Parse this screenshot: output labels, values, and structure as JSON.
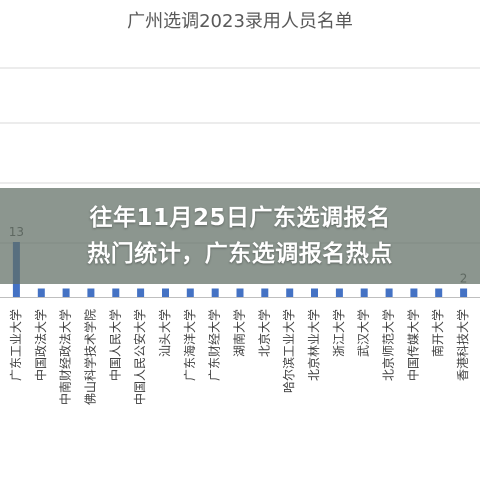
{
  "chart_data": {
    "type": "bar",
    "title": "广州选调2023录用人员名单",
    "categories": [
      "广东工业大学",
      "中国政法大学",
      "中南财经政法大学",
      "佛山科学技术学院",
      "中国人民大学",
      "中国人民公安大学",
      "汕头大学",
      "广东海洋大学",
      "广东财经大学",
      "湖南大学",
      "北京大学",
      "哈尔滨工业大学",
      "北京林业大学",
      "浙江大学",
      "武汉大学",
      "北京师范大学",
      "中国传媒大学",
      "南开大学",
      "香港科技大学"
    ],
    "values": [
      13,
      2,
      2,
      2,
      2,
      2,
      2,
      2,
      2,
      2,
      2,
      2,
      2,
      2,
      2,
      2,
      2,
      2,
      2
    ],
    "data_labels": [
      "13",
      "",
      "",
      "",
      "",
      "",
      "",
      "",
      "",
      "",
      "",
      "",
      "",
      "",
      "",
      "",
      "",
      "",
      "2"
    ],
    "grid": true,
    "bar_color": "#4472c4"
  },
  "banner": {
    "line1": "往年11月25日广东选调报名",
    "line2": "热门统计，广东选调报名热点"
  }
}
